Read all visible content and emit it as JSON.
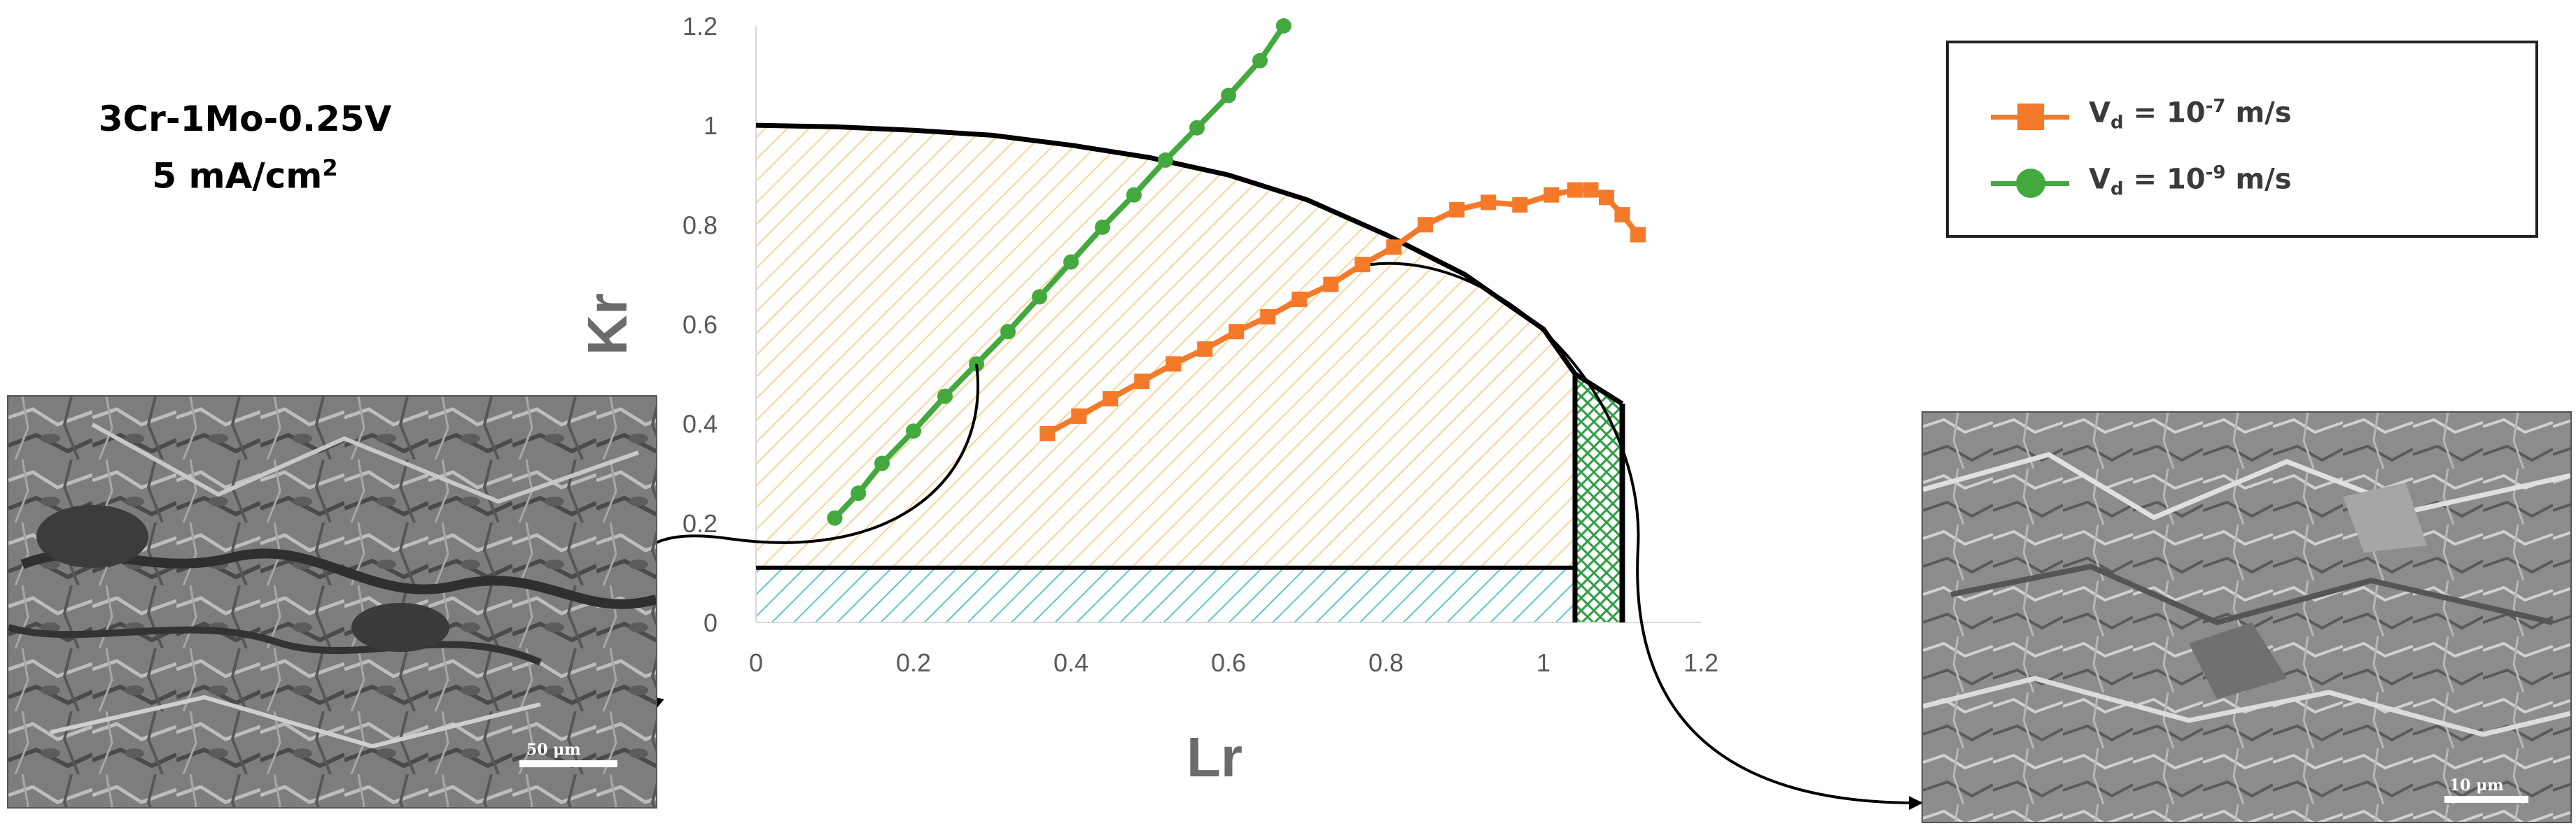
{
  "figure": {
    "material": "3Cr-1Mo-0.25V",
    "current_density": "5 mA/cm",
    "current_density_exp": "2"
  },
  "legend": {
    "entries": [
      {
        "symbol": "V",
        "sub": "d",
        "rest": " = 10",
        "exp": "-7",
        "unit": " m/s",
        "color": "#f47a2a",
        "marker": "square"
      },
      {
        "symbol": "V",
        "sub": "d",
        "rest": " = 10",
        "exp": "-9",
        "unit": " m/s",
        "color": "#43a93e",
        "marker": "circle"
      }
    ]
  },
  "images": {
    "left_scale": "50 μm",
    "right_scale": "10 μm"
  },
  "colors": {
    "hatch_yellow": "#f6d49a",
    "hatch_cyan": "#5cc8c8",
    "hatch_green": "#2e9e44",
    "orange": "#f47a2a",
    "green": "#43a93e"
  },
  "chart_data": {
    "type": "line",
    "title": "",
    "xlabel": "Lr",
    "ylabel": "Kr",
    "xlim": [
      0,
      1.2
    ],
    "ylim": [
      0,
      1.2
    ],
    "xticks": [
      "0",
      "0.2",
      "0.4",
      "0.6",
      "0.8",
      "1",
      "1.2"
    ],
    "yticks": [
      "0",
      "0.2",
      "0.4",
      "0.6",
      "0.8",
      "1",
      "1.2"
    ],
    "grid": false,
    "legend_position": "top-right",
    "fad_curve": {
      "x": [
        0,
        0.1,
        0.2,
        0.3,
        0.4,
        0.5,
        0.6,
        0.7,
        0.8,
        0.9,
        1.0,
        1.04,
        1.1
      ],
      "y": [
        1.0,
        0.997,
        0.99,
        0.98,
        0.96,
        0.935,
        0.9,
        0.85,
        0.78,
        0.7,
        0.59,
        0.5,
        0.44
      ]
    },
    "cutoff_lr": [
      1.04,
      1.1
    ],
    "lower_band_kr": 0.11,
    "series": [
      {
        "name": "Vd = 10-7 m/s",
        "x": [
          0.37,
          0.41,
          0.45,
          0.49,
          0.53,
          0.57,
          0.61,
          0.65,
          0.69,
          0.73,
          0.77,
          0.81,
          0.85,
          0.89,
          0.93,
          0.97,
          1.01,
          1.04,
          1.06,
          1.08,
          1.1,
          1.12
        ],
        "y": [
          0.38,
          0.415,
          0.45,
          0.485,
          0.52,
          0.55,
          0.585,
          0.615,
          0.65,
          0.68,
          0.72,
          0.755,
          0.8,
          0.83,
          0.845,
          0.84,
          0.86,
          0.87,
          0.87,
          0.855,
          0.82,
          0.78
        ]
      },
      {
        "name": "Vd = 10-9 m/s",
        "x": [
          0.1,
          0.13,
          0.16,
          0.2,
          0.24,
          0.28,
          0.32,
          0.36,
          0.4,
          0.44,
          0.48,
          0.52,
          0.56,
          0.6,
          0.64,
          0.67
        ],
        "y": [
          0.21,
          0.26,
          0.32,
          0.385,
          0.455,
          0.52,
          0.585,
          0.655,
          0.725,
          0.795,
          0.86,
          0.93,
          0.995,
          1.06,
          1.13,
          1.2
        ]
      }
    ]
  }
}
